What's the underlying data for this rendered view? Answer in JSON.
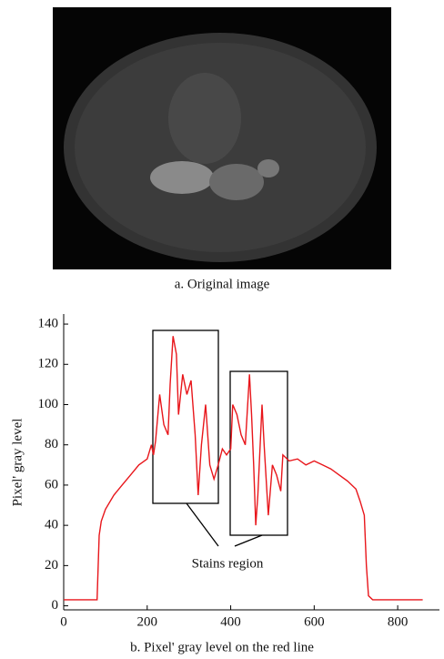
{
  "figure_a": {
    "caption": "a. Original image"
  },
  "chart_data": {
    "type": "line",
    "caption": "b. Pixel' gray level on the red line",
    "ylabel": "Pixel' gray level",
    "annotation": "Stains region",
    "color": "#e8161b",
    "xlim": [
      0,
      900
    ],
    "xticks": [
      0,
      200,
      400,
      600,
      800
    ],
    "ylim": [
      -2,
      145
    ],
    "yticks": [
      0,
      20,
      40,
      60,
      80,
      100,
      120,
      140
    ],
    "x": [
      0,
      40,
      80,
      85,
      90,
      100,
      120,
      140,
      160,
      180,
      200,
      210,
      215,
      220,
      230,
      240,
      250,
      255,
      262,
      270,
      275,
      285,
      295,
      305,
      315,
      322,
      330,
      340,
      350,
      360,
      370,
      380,
      390,
      400,
      405,
      415,
      425,
      435,
      445,
      450,
      455,
      460,
      465,
      475,
      480,
      490,
      500,
      510,
      520,
      525,
      540,
      560,
      580,
      600,
      620,
      640,
      660,
      680,
      700,
      710,
      720,
      725,
      730,
      740,
      800,
      860
    ],
    "series": [
      {
        "name": "gray level",
        "values": [
          3,
          3,
          3,
          35,
          42,
          48,
          55,
          60,
          65,
          70,
          73,
          80,
          75,
          82,
          105,
          90,
          85,
          110,
          134,
          125,
          95,
          115,
          105,
          112,
          85,
          55,
          80,
          100,
          70,
          63,
          70,
          78,
          75,
          78,
          100,
          95,
          85,
          80,
          115,
          95,
          70,
          40,
          55,
          100,
          80,
          45,
          70,
          65,
          57,
          75,
          72,
          73,
          70,
          72,
          70,
          68,
          65,
          62,
          58,
          52,
          45,
          20,
          5,
          3,
          3,
          3
        ]
      }
    ]
  }
}
